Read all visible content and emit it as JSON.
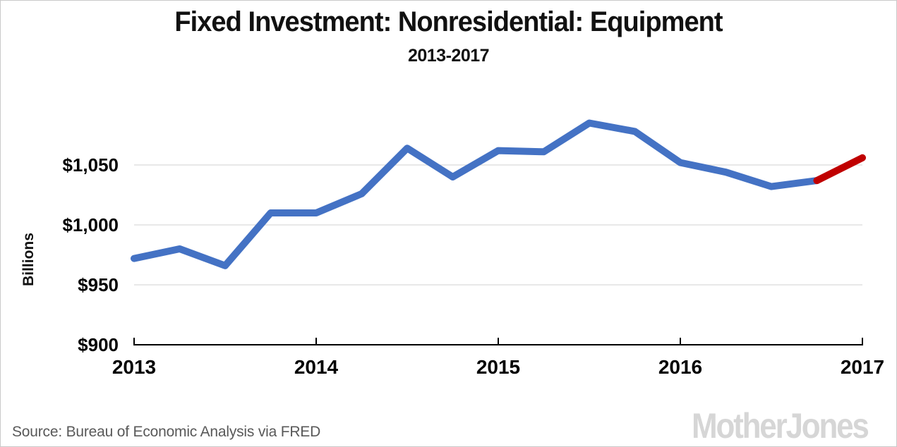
{
  "header": {
    "title": "Fixed Investment: Nonresidential: Equipment",
    "subtitle": "2013-2017"
  },
  "footer": {
    "source": "Source: Bureau of Economic Analysis via FRED",
    "logo": "MotherJones"
  },
  "colors": {
    "actual_line": "#4472c4",
    "latest_line": "#c00000",
    "gridline": "#d9d9d9",
    "axis": "#000000",
    "source_text": "#595959",
    "logo_text": "#d6d6d6"
  },
  "chart_data": {
    "type": "line",
    "title": "Fixed Investment: Nonresidential: Equipment",
    "subtitle": "2013-2017",
    "ylabel": "Billions",
    "unit": "billions of dollars, quarterly",
    "grid": "horizontal",
    "legend": "none",
    "ylim": [
      900,
      1100
    ],
    "x": [
      "2013 Q1",
      "2013 Q2",
      "2013 Q3",
      "2013 Q4",
      "2014 Q1",
      "2014 Q2",
      "2014 Q3",
      "2014 Q4",
      "2015 Q1",
      "2015 Q2",
      "2015 Q3",
      "2015 Q4",
      "2016 Q1",
      "2016 Q2",
      "2016 Q3",
      "2016 Q4",
      "2017 Q1"
    ],
    "x_tick_labels": [
      "2013",
      "2014",
      "2015",
      "2016",
      "2017"
    ],
    "x_tick_indices": [
      0,
      4,
      8,
      12,
      16
    ],
    "y_ticks": [
      {
        "value": 900,
        "label": "$900"
      },
      {
        "value": 950,
        "label": "$950"
      },
      {
        "value": 1000,
        "label": "$1,000"
      },
      {
        "value": 1050,
        "label": "$1,050"
      }
    ],
    "series": [
      {
        "name": "actual",
        "color": "#4472c4",
        "start_index": 0,
        "values": [
          972,
          980,
          966,
          1010,
          1010,
          1026,
          1064,
          1040,
          1062,
          1061,
          1085,
          1078,
          1052,
          1044,
          1032,
          1037
        ]
      },
      {
        "name": "latest-quarter",
        "color": "#c00000",
        "start_index": 15,
        "values": [
          1037,
          1056
        ]
      }
    ]
  }
}
